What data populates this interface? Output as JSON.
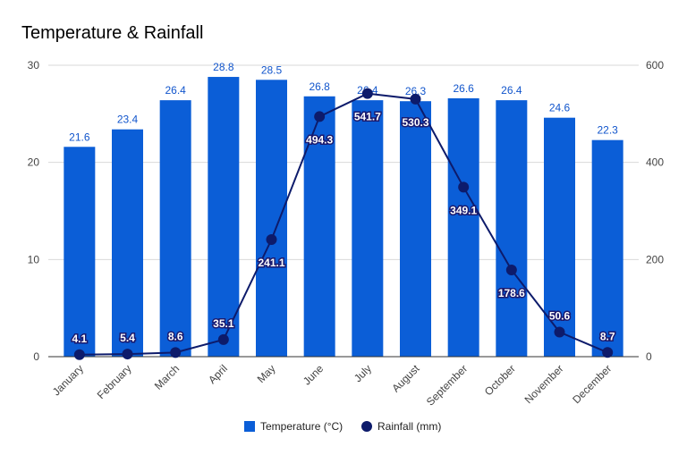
{
  "chart_data": {
    "type": "bar",
    "title": "Temperature & Rainfall",
    "categories": [
      "January",
      "February",
      "March",
      "April",
      "May",
      "June",
      "July",
      "August",
      "September",
      "October",
      "November",
      "December"
    ],
    "series": [
      {
        "name": "Temperature (°C)",
        "type": "bar",
        "axis": "left",
        "color": "#0b5ed7",
        "values": [
          21.6,
          23.4,
          26.4,
          28.8,
          28.5,
          26.8,
          26.4,
          26.3,
          26.6,
          26.4,
          24.6,
          22.3
        ]
      },
      {
        "name": "Rainfall (mm)",
        "type": "line",
        "axis": "right",
        "color": "#0d1b6b",
        "values": [
          4.1,
          5.4,
          8.6,
          35.1,
          241.1,
          494.3,
          541.7,
          530.3,
          349.1,
          178.6,
          50.6,
          8.7
        ]
      }
    ],
    "y_left": {
      "min": 0,
      "max": 30,
      "ticks": [
        0,
        10,
        20,
        30
      ]
    },
    "y_right": {
      "min": 0,
      "max": 600,
      "ticks": [
        0,
        200,
        400,
        600
      ]
    },
    "grid": true,
    "legend": "bottom"
  }
}
